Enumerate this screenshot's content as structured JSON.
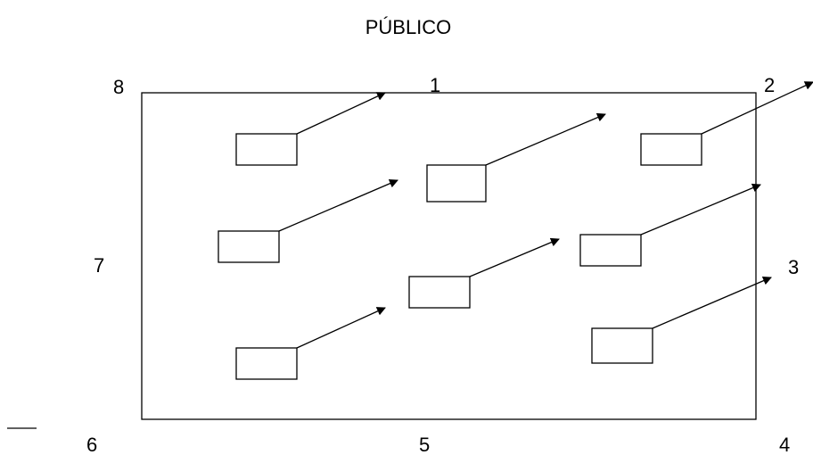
{
  "title": "PÚBLICO",
  "labels": {
    "p1": "1",
    "p2": "2",
    "p3": "3",
    "p4": "4",
    "p5": "5",
    "p6": "6",
    "p7": "7",
    "p8": "8"
  },
  "colors": {
    "stroke": "#000000",
    "background": "#ffffff"
  }
}
